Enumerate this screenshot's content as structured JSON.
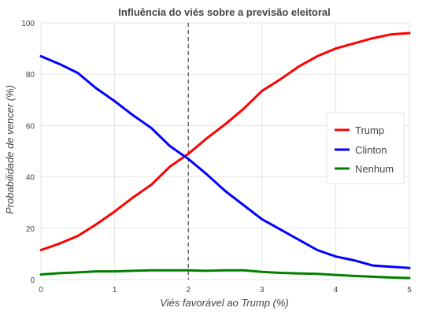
{
  "chart_data": {
    "type": "line",
    "title": "Influência do viés sobre a previsão eleitoral",
    "xlabel": "Viés favorável ao Trump (%)",
    "ylabel": "Probabilidade de vencer (%)",
    "xlim": [
      0,
      5
    ],
    "ylim": [
      0,
      100
    ],
    "xticks": [
      "0",
      "1",
      "2",
      "3",
      "4",
      "5"
    ],
    "yticks": [
      "0",
      "20",
      "40",
      "60",
      "80",
      "100"
    ],
    "grid": true,
    "legend_position": "right",
    "reference_line": {
      "x": 2,
      "style": "dashed"
    },
    "x": [
      0,
      0.25,
      0.5,
      0.75,
      1,
      1.25,
      1.5,
      1.75,
      2,
      2.25,
      2.5,
      2.75,
      3,
      3.25,
      3.5,
      3.75,
      4,
      4.25,
      4.5,
      4.75,
      5
    ],
    "series": [
      {
        "name": "Trump",
        "color": "#ff0000",
        "values": [
          11.5,
          14,
          17,
          21.5,
          26.5,
          32,
          37,
          44,
          49,
          55,
          60.5,
          66.5,
          73.5,
          78,
          83,
          87,
          90,
          92,
          94,
          95.5,
          96
        ]
      },
      {
        "name": "Clinton",
        "color": "#0000ff",
        "values": [
          87,
          84,
          80.5,
          74.5,
          69.5,
          64,
          59,
          52,
          47,
          41,
          34.5,
          29,
          23.5,
          19.5,
          15.5,
          11.5,
          9,
          7.5,
          5.5,
          5,
          4.5
        ]
      },
      {
        "name": "Nenhum",
        "color": "#008000",
        "values": [
          2,
          2.5,
          2.8,
          3.2,
          3.2,
          3.4,
          3.6,
          3.6,
          3.6,
          3.4,
          3.6,
          3.6,
          3,
          2.6,
          2.4,
          2.2,
          1.8,
          1.4,
          1.1,
          0.8,
          0.6
        ]
      }
    ]
  }
}
